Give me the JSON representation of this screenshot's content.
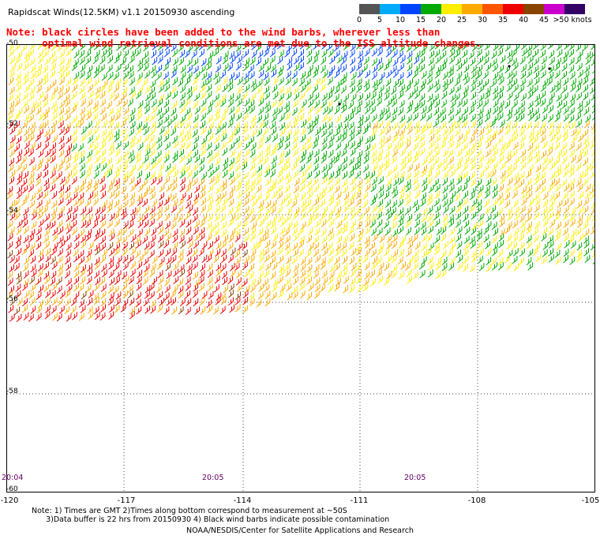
{
  "title": "Rapidscat Winds(12.5KM) v1.1 20150930 ascending",
  "note_line1": "Note: black circles have been added to the wind barbs, wherever less than",
  "note_line2": "      optimal wind retrieval conditions are met due to the ISS altitude changes.",
  "legend": {
    "unit": ">50 knots",
    "labels": [
      "0",
      "5",
      "10",
      "15",
      "20",
      "25",
      "30",
      "35",
      "40",
      "45",
      ">50 knots"
    ],
    "colors": [
      "#555555",
      "#00aaff",
      "#0044ff",
      "#00aa00",
      "#ffee00",
      "#ffaa00",
      "#ff5500",
      "#ee0000",
      "#884400",
      "#cc00cc",
      "#330066"
    ]
  },
  "map": {
    "lat_labels": [
      "-50",
      "-52",
      "-54",
      "-56",
      "-58",
      "-60"
    ],
    "lon_labels": [
      "-120",
      "-117",
      "-114",
      "-111",
      "-108",
      "-105"
    ],
    "time_labels": [
      "20:04",
      "20:05",
      "20:05"
    ],
    "wind_colors": {
      "green": "#00aa00",
      "blue": "#0044ff",
      "yellow": "#ffee00",
      "orange": "#ffaa00",
      "red": "#ee0000",
      "brown": "#884400"
    }
  },
  "footnote_line1": "Note: 1) Times are GMT 2)Times along bottom correspond to measurement at ~50S",
  "footnote_line2": "      3)Data buffer is 22 hrs from 20150930 4) Black wind barbs indicate possible contamination",
  "credit": "NOAA/NESDIS/Center for Satellite Applications and Research"
}
